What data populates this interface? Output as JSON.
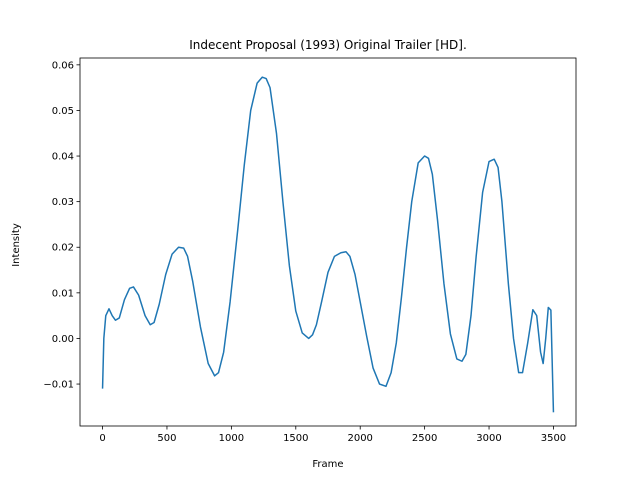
{
  "chart_data": {
    "type": "line",
    "title": "Indecent Proposal (1993) Original Trailer [HD].",
    "xlabel": "Frame",
    "ylabel": "Intensity",
    "xlim": [
      -175,
      3675
    ],
    "ylim": [
      -0.0192,
      0.0615
    ],
    "xticks": [
      0,
      500,
      1000,
      1500,
      2000,
      2500,
      3000,
      3500
    ],
    "xtick_labels": [
      "0",
      "500",
      "1000",
      "1500",
      "2000",
      "2500",
      "3000",
      "3500"
    ],
    "yticks": [
      -0.01,
      0.0,
      0.01,
      0.02,
      0.03,
      0.04,
      0.05,
      0.06
    ],
    "ytick_labels": [
      "−0.01",
      "0.00",
      "0.01",
      "0.02",
      "0.03",
      "0.04",
      "0.05",
      "0.06"
    ],
    "grid": false,
    "legend": "none",
    "series": [
      {
        "color": "#1f77b4",
        "x": [
          0,
          10,
          25,
          50,
          75,
          100,
          130,
          170,
          210,
          240,
          280,
          330,
          370,
          400,
          440,
          490,
          540,
          590,
          630,
          660,
          700,
          760,
          820,
          870,
          900,
          940,
          990,
          1050,
          1100,
          1150,
          1200,
          1240,
          1270,
          1300,
          1350,
          1400,
          1450,
          1500,
          1550,
          1600,
          1630,
          1660,
          1700,
          1750,
          1800,
          1850,
          1890,
          1920,
          1960,
          2000,
          2050,
          2100,
          2150,
          2200,
          2240,
          2280,
          2320,
          2360,
          2400,
          2450,
          2500,
          2530,
          2560,
          2600,
          2650,
          2700,
          2750,
          2790,
          2820,
          2860,
          2900,
          2950,
          3000,
          3040,
          3070,
          3100,
          3150,
          3190,
          3230,
          3260,
          3300,
          3340,
          3370,
          3400,
          3420,
          3440,
          3460,
          3480,
          3490,
          3500
        ],
        "y": [
          -0.011,
          0.0,
          0.005,
          0.0065,
          0.005,
          0.004,
          0.0045,
          0.0085,
          0.011,
          0.0113,
          0.0095,
          0.005,
          0.003,
          0.0035,
          0.0075,
          0.014,
          0.0185,
          0.02,
          0.0198,
          0.018,
          0.0125,
          0.0025,
          -0.0055,
          -0.0082,
          -0.0075,
          -0.003,
          0.008,
          0.024,
          0.038,
          0.05,
          0.056,
          0.0573,
          0.057,
          0.055,
          0.045,
          0.03,
          0.016,
          0.006,
          0.0012,
          0.0,
          0.0008,
          0.003,
          0.008,
          0.0145,
          0.018,
          0.0188,
          0.019,
          0.018,
          0.014,
          0.008,
          0.0005,
          -0.0065,
          -0.01,
          -0.0105,
          -0.0075,
          -0.001,
          0.009,
          0.02,
          0.03,
          0.0385,
          0.04,
          0.0395,
          0.036,
          0.026,
          0.012,
          0.001,
          -0.0045,
          -0.005,
          -0.0035,
          0.005,
          0.018,
          0.032,
          0.0388,
          0.0393,
          0.0375,
          0.03,
          0.012,
          0.0,
          -0.0075,
          -0.0075,
          -0.001,
          0.0063,
          0.005,
          -0.003,
          -0.0055,
          0.0,
          0.0068,
          0.0062,
          -0.005,
          -0.0162
        ]
      }
    ]
  }
}
